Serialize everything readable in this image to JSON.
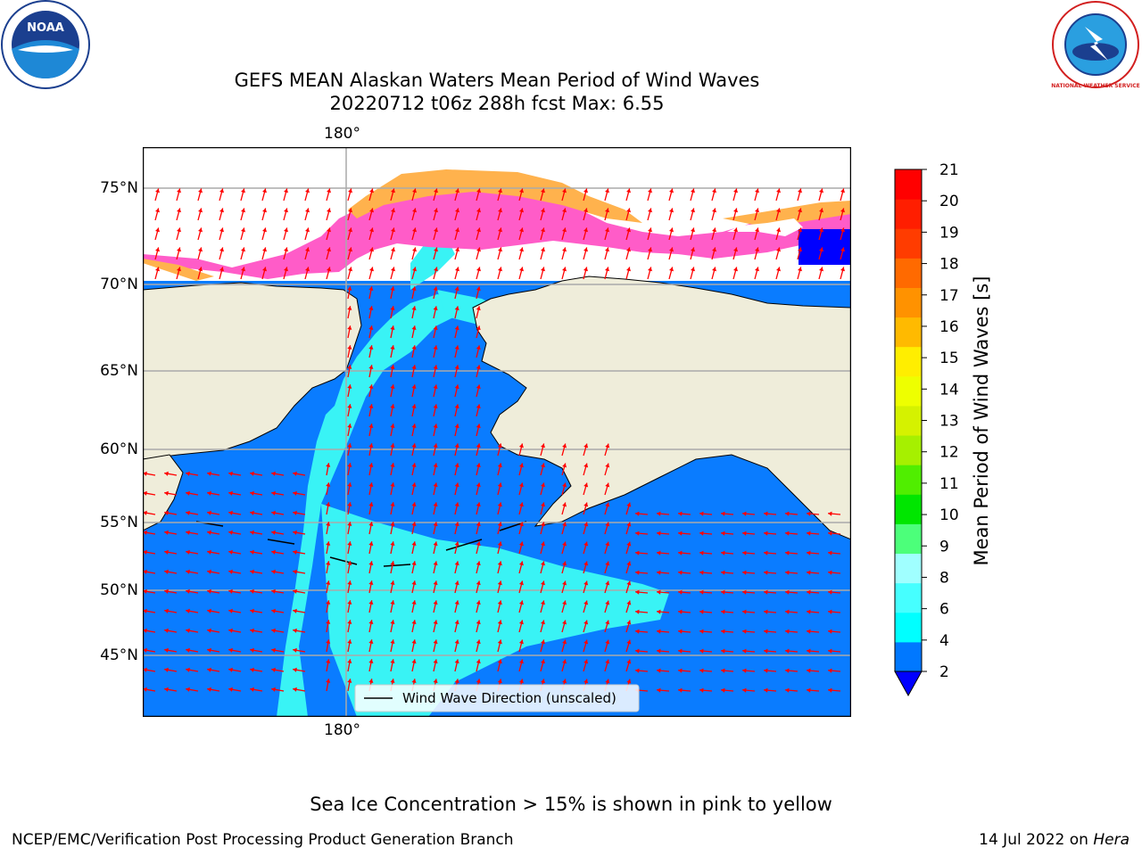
{
  "header": {
    "title_line1": "GEFS MEAN Alaskan Waters Mean Period of Wind Waves",
    "title_line2": "20220712 t06z 288h fcst   Max: 6.55"
  },
  "map": {
    "lon_label_top": "180°",
    "lon_label_bottom": "180°",
    "lat_labels": [
      "75°N",
      "70°N",
      "65°N",
      "60°N",
      "55°N",
      "50°N",
      "45°N"
    ],
    "legend_label": "Wind Wave Direction (unscaled)",
    "colors": {
      "land": "#efedda",
      "ocean_low": "#0a7cff",
      "ocean_mid": "#39f3f5",
      "ice": "#ff5cc8",
      "ice_edge": "#ffb24d",
      "arrow": "#ff0000"
    }
  },
  "colorbar": {
    "label": "Mean Period of Wind Waves [s]",
    "ticks": [
      "21",
      "20",
      "19",
      "18",
      "17",
      "16",
      "15",
      "14",
      "13",
      "12",
      "11",
      "10",
      "9",
      "8",
      "6",
      "4",
      "2"
    ],
    "colors": [
      "#0078ff",
      "#00ffff",
      "#46ffff",
      "#a0ffff",
      "#4cff7a",
      "#00e600",
      "#50ee00",
      "#a6f000",
      "#d5f200",
      "#eeff00",
      "#ffee00",
      "#ffba00",
      "#ff9200",
      "#ff6a00",
      "#ff3c00",
      "#ff1e00",
      "#ff0000"
    ],
    "under_color": "#0000ff"
  },
  "footer": {
    "sea_ice_note": "Sea Ice Concentration > 15% is shown in pink to yellow",
    "branch": "NCEP/EMC/Verification Post Processing Product Generation Branch",
    "date_prefix": "14 Jul 2022 on ",
    "machine": "Hera"
  },
  "logos": {
    "noaa_text": "NOAA",
    "nws_text": "NATIONAL WEATHER SERVICE"
  }
}
